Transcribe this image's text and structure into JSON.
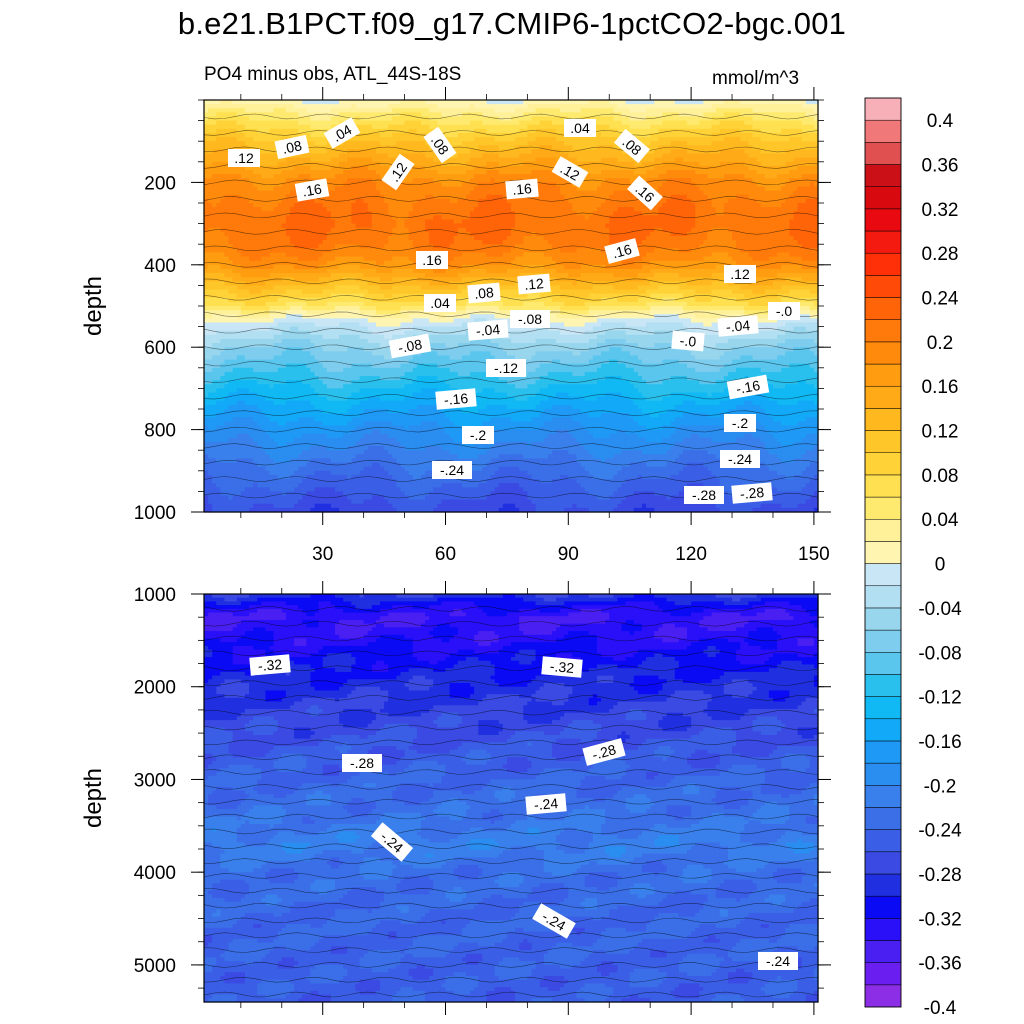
{
  "chart_data": {
    "type": "heatmap",
    "title": "b.e21.B1PCT.f09_g17.CMIP6-1pctCO2-bgc.001",
    "subtitle": "PO4 minus obs, ATL_44S-18S",
    "units": "mmol/m^3",
    "ylabel": "depth",
    "x_range": [
      1,
      151
    ],
    "x_ticks": [
      30,
      60,
      90,
      120,
      150
    ],
    "x_tick_labels": [
      "30",
      "60",
      "90",
      "120",
      "150"
    ],
    "upper_panel": {
      "ylim": [
        0,
        1000
      ],
      "y_ticks": [
        200,
        400,
        600,
        800,
        1000
      ],
      "y_tick_labels": [
        "200",
        "400",
        "600",
        "800",
        "1000"
      ],
      "depth_profile": {
        "depths": [
          0,
          30,
          60,
          100,
          150,
          200,
          250,
          300,
          350,
          400,
          450,
          500,
          520,
          540,
          600,
          700,
          800,
          900,
          1000
        ],
        "values": [
          -0.02,
          0.02,
          0.05,
          0.09,
          0.13,
          0.17,
          0.19,
          0.2,
          0.19,
          0.16,
          0.1,
          0.04,
          0.0,
          -0.03,
          -0.08,
          -0.14,
          -0.2,
          -0.25,
          -0.29
        ]
      },
      "contour_labels": [
        ".12",
        ".08",
        ".04",
        ".08",
        ".12",
        ".04",
        ".12",
        ".08",
        ".16",
        ".16",
        ".16",
        ".16",
        ".16",
        ".12",
        ".04",
        ".08",
        ".12",
        "-.0",
        "-.04",
        "-.08",
        "-.04",
        "-.08",
        "-.0",
        "-.12",
        "-.16",
        "-.16",
        "-.2",
        "-.2",
        "-.24",
        "-.24",
        "-.28",
        "-.28"
      ]
    },
    "lower_panel": {
      "ylim": [
        1000,
        5400
      ],
      "y_ticks": [
        1000,
        2000,
        3000,
        4000,
        5000
      ],
      "y_tick_labels": [
        "1000",
        "2000",
        "3000",
        "4000",
        "5000"
      ],
      "depth_profile": {
        "depths": [
          1000,
          1100,
          1250,
          1450,
          1700,
          2000,
          2400,
          2700,
          3000,
          3300,
          3700,
          4000,
          4500,
          5000,
          5400
        ],
        "values": [
          -0.3,
          -0.33,
          -0.36,
          -0.35,
          -0.33,
          -0.31,
          -0.29,
          -0.275,
          -0.26,
          -0.25,
          -0.23,
          -0.25,
          -0.26,
          -0.265,
          -0.27
        ]
      },
      "contour_labels": [
        "-.32",
        "-.32",
        "-.28",
        "-.28",
        "-.24",
        "-.24",
        "-.24",
        "-.24"
      ]
    },
    "colorbar": {
      "levels": [
        -0.4,
        -0.38,
        -0.36,
        -0.34,
        -0.32,
        -0.3,
        -0.28,
        -0.26,
        -0.24,
        -0.22,
        -0.2,
        -0.18,
        -0.16,
        -0.14,
        -0.12,
        -0.1,
        -0.08,
        -0.06,
        -0.04,
        -0.02,
        0,
        0.02,
        0.04,
        0.06,
        0.08,
        0.1,
        0.12,
        0.14,
        0.16,
        0.18,
        0.2,
        0.22,
        0.24,
        0.26,
        0.28,
        0.3,
        0.32,
        0.34,
        0.36,
        0.38,
        0.4
      ],
      "tick_labels": [
        "0.4",
        "0.36",
        "0.32",
        "0.28",
        "0.24",
        "0.2",
        "0.16",
        "0.12",
        "0.08",
        "0.04",
        "0",
        "-0.04",
        "-0.08",
        "-0.12",
        "-0.16",
        "-0.2",
        "-0.24",
        "-0.28",
        "-0.32",
        "-0.36",
        "-0.4"
      ],
      "colors": [
        "#8c2ee6",
        "#6a1ef0",
        "#4a20f2",
        "#2a10f8",
        "#0a0af5",
        "#2030e0",
        "#3a4ae2",
        "#3a5fe6",
        "#3a6fe8",
        "#3a80ec",
        "#2a8df0",
        "#1e9af6",
        "#12aaf8",
        "#10b8f4",
        "#2ac0ee",
        "#5ac6ee",
        "#7ecdee",
        "#98d6ee",
        "#b2dff2",
        "#c8e6f6",
        "#fff5b0",
        "#fff09a",
        "#ffea70",
        "#ffe050",
        "#ffd338",
        "#ffc62a",
        "#ffb81e",
        "#ffaa16",
        "#ff9c10",
        "#ff8a0c",
        "#ff7a0a",
        "#ff6408",
        "#ff4a08",
        "#ff3008",
        "#f51a10",
        "#e80a10",
        "#d80a10",
        "#cc1018",
        "#e05050",
        "#f07878",
        "#f8b0b8"
      ]
    }
  }
}
